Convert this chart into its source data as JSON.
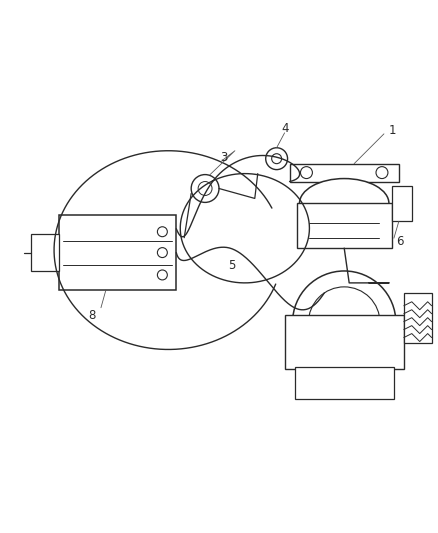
{
  "background_color": "#ffffff",
  "line_color": "#2a2a2a",
  "fig_width": 4.39,
  "fig_height": 5.33,
  "dpi": 100,
  "label_fontsize": 8.5,
  "label_color": "#2a2a2a"
}
